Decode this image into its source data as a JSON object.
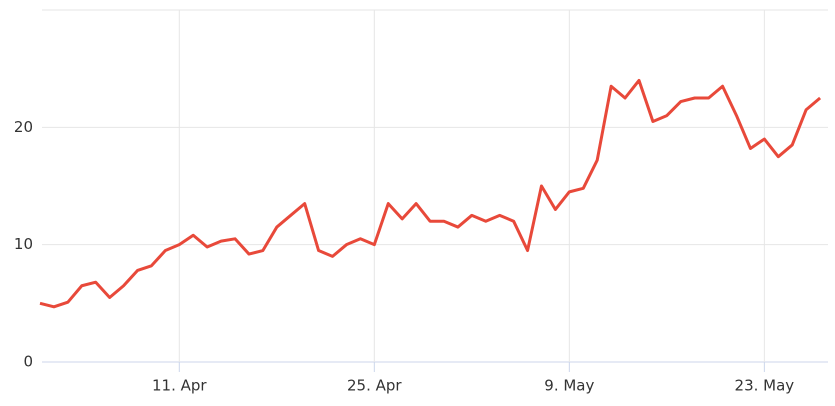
{
  "chart_data": {
    "type": "line",
    "categories": [
      null,
      null,
      null,
      null,
      null,
      null,
      null,
      null,
      null,
      null,
      "11. Apr",
      null,
      null,
      null,
      null,
      null,
      null,
      null,
      null,
      null,
      null,
      null,
      null,
      null,
      "25. Apr",
      null,
      null,
      null,
      null,
      null,
      null,
      null,
      null,
      null,
      null,
      null,
      null,
      null,
      "9. May",
      null,
      null,
      null,
      null,
      null,
      null,
      null,
      null,
      null,
      null,
      null,
      null,
      null,
      "23. May",
      null,
      null,
      null,
      null
    ],
    "series": [
      {
        "color": "#e8493a",
        "values": [
          5,
          4.7,
          5.1,
          6.5,
          6.8,
          5.5,
          6.5,
          7.8,
          8.2,
          9.5,
          10,
          10.8,
          9.8,
          10.3,
          10.5,
          9.2,
          9.5,
          11.5,
          12.5,
          13.5,
          9.5,
          9,
          10,
          10.5,
          10,
          13.5,
          12.2,
          13.5,
          12,
          12,
          11.5,
          12.5,
          12,
          12.5,
          12,
          9.5,
          15,
          13,
          14.5,
          14.8,
          17.2,
          23.5,
          22.5,
          24,
          20.5,
          21,
          22.2,
          22.5,
          22.5,
          23.5,
          21,
          18.2,
          19,
          17.5,
          18.5,
          21.5,
          22.5
        ]
      }
    ],
    "ylim": [
      0,
      30
    ],
    "yticks": [
      0,
      10,
      20
    ],
    "grid": true
  }
}
